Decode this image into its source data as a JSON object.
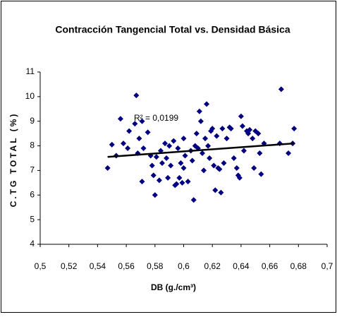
{
  "chart_data": {
    "type": "scatter",
    "title": "Contracción Tangencial Total vs. Densidad Básica",
    "xlabel": "DB (g./cm³)",
    "ylabel": "C.TG TOTAL (%)",
    "annotation": "R² = 0,0199",
    "xlim": [
      0.5,
      0.7
    ],
    "ylim": [
      4,
      11
    ],
    "xticks": [
      {
        "value": 0.5,
        "label": "0,5"
      },
      {
        "value": 0.52,
        "label": "0,52"
      },
      {
        "value": 0.54,
        "label": "0,54"
      },
      {
        "value": 0.56,
        "label": "0,56"
      },
      {
        "value": 0.58,
        "label": "0,58"
      },
      {
        "value": 0.6,
        "label": "0,6"
      },
      {
        "value": 0.62,
        "label": "0,62"
      },
      {
        "value": 0.64,
        "label": "0,64"
      },
      {
        "value": 0.66,
        "label": "0,66"
      },
      {
        "value": 0.68,
        "label": "0,68"
      },
      {
        "value": 0.7,
        "label": "0,7"
      }
    ],
    "yticks": [
      4,
      5,
      6,
      7,
      8,
      9,
      10,
      11
    ],
    "grid": false,
    "color": "#000080",
    "trendline_color": "#000000",
    "x": [
      0.547,
      0.55,
      0.553,
      0.556,
      0.558,
      0.561,
      0.562,
      0.566,
      0.567,
      0.568,
      0.569,
      0.571,
      0.571,
      0.572,
      0.575,
      0.577,
      0.578,
      0.579,
      0.58,
      0.581,
      0.583,
      0.584,
      0.585,
      0.587,
      0.588,
      0.589,
      0.59,
      0.591,
      0.593,
      0.594,
      0.595,
      0.596,
      0.597,
      0.598,
      0.599,
      0.6,
      0.6,
      0.601,
      0.603,
      0.605,
      0.606,
      0.607,
      0.608,
      0.609,
      0.61,
      0.611,
      0.612,
      0.613,
      0.614,
      0.615,
      0.616,
      0.617,
      0.618,
      0.619,
      0.62,
      0.621,
      0.622,
      0.623,
      0.624,
      0.625,
      0.626,
      0.627,
      0.628,
      0.63,
      0.632,
      0.633,
      0.635,
      0.637,
      0.638,
      0.639,
      0.64,
      0.641,
      0.642,
      0.644,
      0.645,
      0.646,
      0.648,
      0.649,
      0.65,
      0.652,
      0.653,
      0.654,
      0.656,
      0.668,
      0.667,
      0.673,
      0.676,
      0.677
    ],
    "values": [
      7.1,
      8.05,
      7.6,
      9.1,
      8.1,
      7.9,
      8.6,
      8.9,
      10.05,
      7.7,
      8.3,
      9.0,
      6.55,
      7.9,
      8.55,
      7.6,
      7.2,
      6.8,
      6.0,
      7.55,
      6.6,
      7.8,
      7.3,
      8.1,
      7.5,
      6.7,
      8.0,
      7.2,
      8.2,
      6.4,
      6.45,
      7.9,
      6.7,
      7.3,
      6.5,
      8.3,
      7.1,
      7.6,
      6.55,
      7.8,
      7.4,
      5.8,
      8.0,
      8.5,
      7.9,
      9.4,
      9.0,
      7.7,
      7.0,
      8.3,
      9.7,
      8.0,
      7.5,
      8.6,
      8.7,
      7.2,
      6.2,
      8.4,
      7.1,
      7.05,
      6.1,
      8.7,
      7.3,
      8.3,
      8.75,
      8.7,
      7.5,
      7.1,
      6.8,
      6.7,
      9.2,
      8.8,
      7.8,
      8.6,
      8.5,
      8.65,
      8.3,
      7.1,
      8.6,
      8.5,
      7.7,
      6.85,
      8.1,
      10.3,
      8.1,
      7.7,
      8.1,
      8.7
    ],
    "trendline": {
      "x": [
        0.547,
        0.677
      ],
      "y": [
        7.55,
        8.1
      ]
    }
  }
}
